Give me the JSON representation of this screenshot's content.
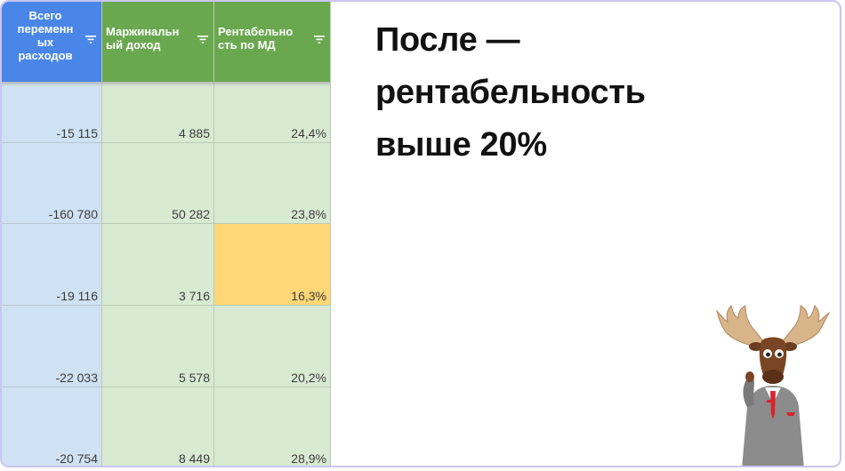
{
  "table": {
    "headers": {
      "total_variable": [
        "Всего",
        "переменн",
        "ых",
        "расходов"
      ],
      "marginal_income": [
        "Маржинальн",
        "ый доход"
      ],
      "profitability": [
        "Рентабельно",
        "сть по МД"
      ]
    },
    "rows": [
      {
        "total_variable": "-15 115",
        "marginal_income": "4 885",
        "profitability": "24,4%"
      },
      {
        "total_variable": "-160 780",
        "marginal_income": "50 282",
        "profitability": "23,8%"
      },
      {
        "total_variable": "-19 116",
        "marginal_income": "3 716",
        "profitability": "16,3%"
      },
      {
        "total_variable": "-22 033",
        "marginal_income": "5 578",
        "profitability": "20,2%"
      },
      {
        "total_variable": "-20 754",
        "marginal_income": "8 449",
        "profitability": "28,9%"
      }
    ],
    "highlighted_row": 2,
    "colors": {
      "header_blue": "#4a86e8",
      "header_green": "#6aa84f",
      "cell_blue": "#cfe2f3",
      "cell_green": "#d9ead3",
      "highlight": "#ffd777"
    }
  },
  "headline": [
    "После —",
    "рентабельность",
    "выше 20%"
  ],
  "icons": {
    "filter": "filter-icon",
    "mascot": "moose-mascot"
  }
}
